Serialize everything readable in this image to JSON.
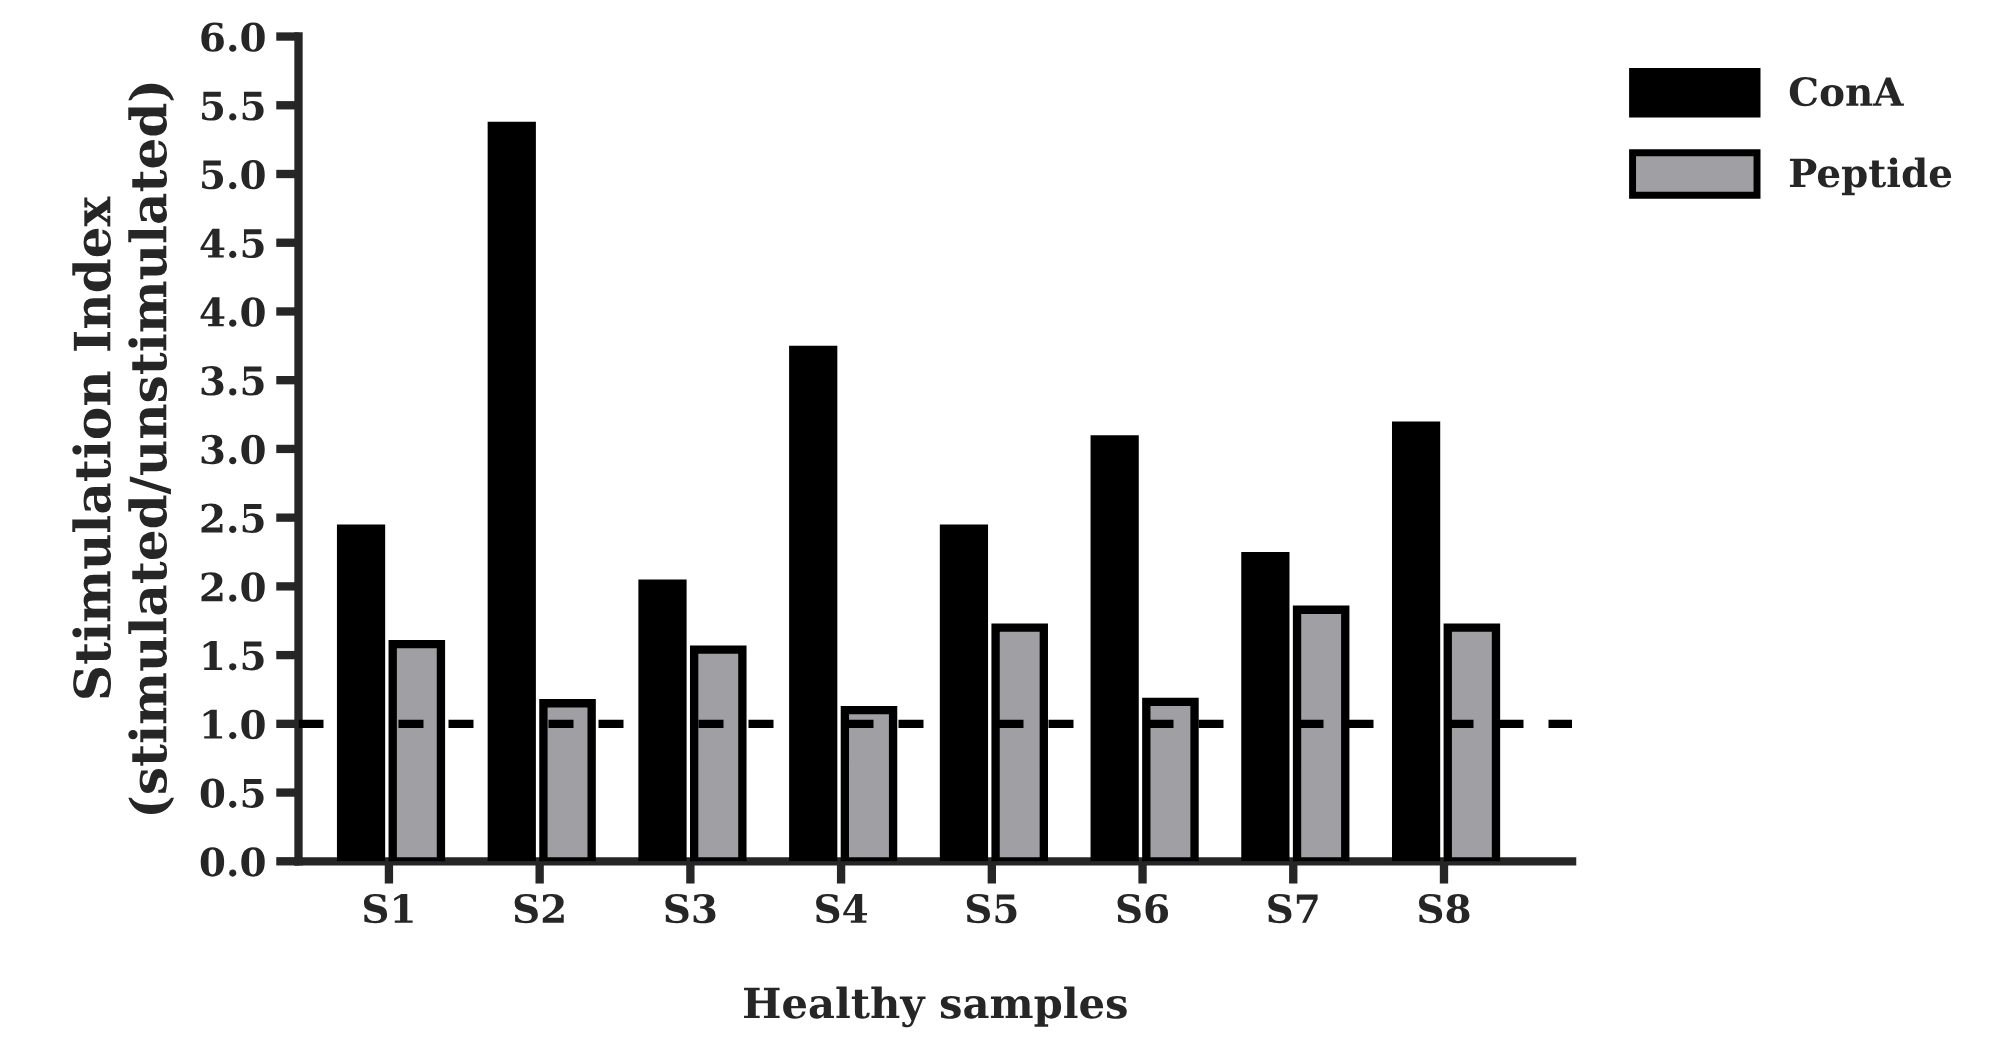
{
  "chart_data": {
    "type": "bar",
    "xlabel": "Healthy samples",
    "ylabel": "Stimulation Index\n(stimulated/unstimulated)",
    "categories": [
      "S1",
      "S2",
      "S3",
      "S4",
      "S5",
      "S6",
      "S7",
      "S8"
    ],
    "series": [
      {
        "name": "ConA",
        "color": "#000000",
        "values": [
          2.45,
          5.38,
          2.05,
          3.75,
          2.45,
          3.1,
          2.25,
          3.2
        ]
      },
      {
        "name": "Peptide",
        "color": "#a0a0a4",
        "values": [
          1.58,
          1.15,
          1.54,
          1.1,
          1.7,
          1.16,
          1.83,
          1.7
        ]
      }
    ],
    "ylim": [
      0,
      6
    ],
    "yticks": [
      {
        "value": 0,
        "label": "0.0"
      },
      {
        "value": 0.5,
        "label": "0.5"
      },
      {
        "value": 1,
        "label": "1.0"
      },
      {
        "value": 1.5,
        "label": "1.5"
      },
      {
        "value": 2,
        "label": "2.0"
      },
      {
        "value": 2.5,
        "label": "2.5"
      },
      {
        "value": 3,
        "label": "3.0"
      },
      {
        "value": 3.5,
        "label": "3.5"
      },
      {
        "value": 4,
        "label": "4.0"
      },
      {
        "value": 4.5,
        "label": "4.5"
      },
      {
        "value": 5,
        "label": "5.0"
      },
      {
        "value": 5.5,
        "label": "5.5"
      },
      {
        "value": 6,
        "label": "6.0"
      }
    ],
    "ref_lines": [
      {
        "axis": "y",
        "value": 1,
        "line_style": "dashed",
        "color": "#000000"
      }
    ],
    "grid": false,
    "legend": "top right"
  }
}
